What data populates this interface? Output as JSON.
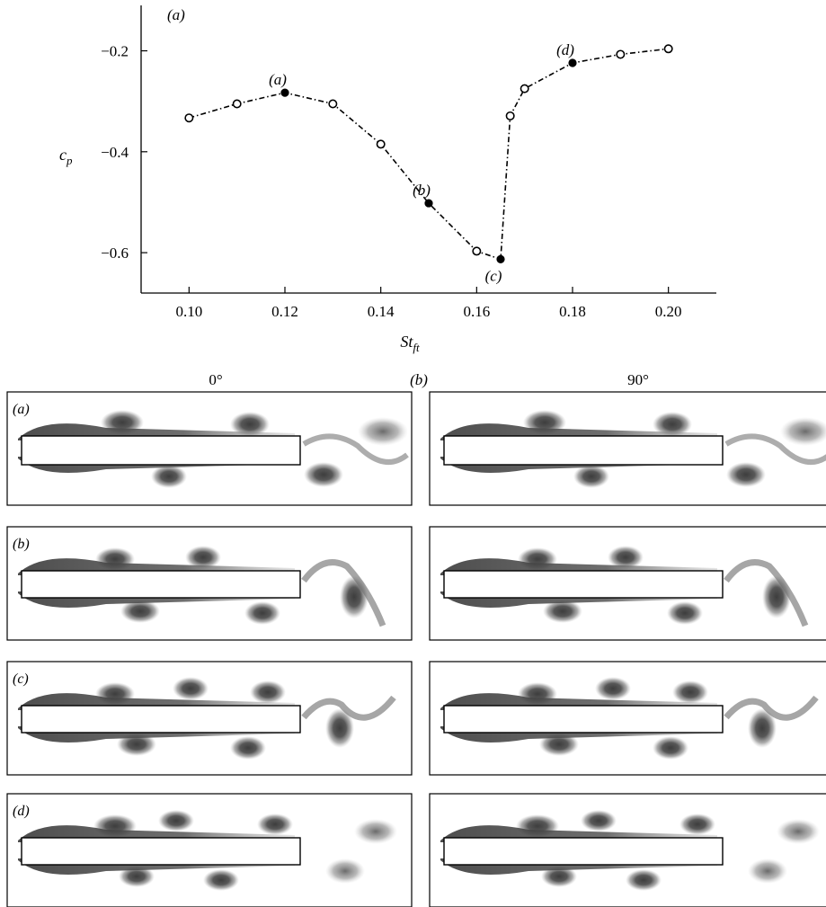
{
  "chart_data": {
    "type": "line",
    "panel_label": "(a)",
    "ylabel": "c",
    "ylabel_sub": "p",
    "xlabel": "St",
    "xlabel_sub": "ft",
    "xlim": [
      0.09,
      0.21
    ],
    "ylim": [
      -0.68,
      -0.11
    ],
    "x_ticks": [
      0.1,
      0.12,
      0.14,
      0.16,
      0.18,
      0.2
    ],
    "x_tick_labels": [
      "0.10",
      "0.12",
      "0.14",
      "0.16",
      "0.18",
      "0.20"
    ],
    "y_ticks": [
      -0.2,
      -0.4,
      -0.6
    ],
    "y_tick_labels": [
      "−0.2",
      "−0.4",
      "−0.6"
    ],
    "series": [
      {
        "style": "dash-dot line with circle markers",
        "points": [
          {
            "x": 0.1,
            "y": -0.333,
            "filled": false
          },
          {
            "x": 0.11,
            "y": -0.305,
            "filled": false
          },
          {
            "x": 0.12,
            "y": -0.283,
            "filled": true,
            "label": "(a)"
          },
          {
            "x": 0.13,
            "y": -0.305,
            "filled": false
          },
          {
            "x": 0.14,
            "y": -0.385,
            "filled": false
          },
          {
            "x": 0.15,
            "y": -0.502,
            "filled": true,
            "label": "(b)"
          },
          {
            "x": 0.16,
            "y": -0.597,
            "filled": false
          },
          {
            "x": 0.165,
            "y": -0.613,
            "filled": true,
            "label": "(c)"
          },
          {
            "x": 0.167,
            "y": -0.329,
            "filled": false
          },
          {
            "x": 0.17,
            "y": -0.275,
            "filled": false
          },
          {
            "x": 0.18,
            "y": -0.224,
            "filled": true,
            "label": "(d)"
          },
          {
            "x": 0.19,
            "y": -0.207,
            "filled": false
          },
          {
            "x": 0.2,
            "y": -0.196,
            "filled": false
          }
        ]
      }
    ]
  },
  "panel_b": {
    "label": "(b)",
    "col_left": "0°",
    "col_right": "90°",
    "rows": [
      "(a)",
      "(b)",
      "(c)",
      "(d)"
    ]
  }
}
